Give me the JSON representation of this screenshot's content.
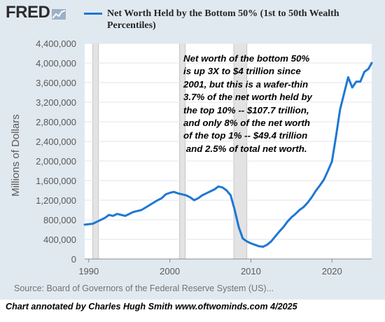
{
  "header": {
    "logo_text": "FRED",
    "legend_label": "Net Worth Held by the Bottom 50% (1st to 50th Wealth Percentiles)"
  },
  "annotation": {
    "lines": [
      "Net worth of the bottom 50%",
      "is up 3X to $4 trillion since",
      "2001, but this is a wafer-thin",
      "3.7% of the net worth held by",
      "the top 10% -- $107.7 trillion,",
      "and only 8% of the net worth",
      "of the top 1% -- $49.4 trillion",
      " and 2.5% of total net worth."
    ]
  },
  "source_text": "Source: Board of Governors of the Federal Reserve System (US)...",
  "footer_text": "Chart annotated by Charles Hugh Smith  www.oftwominds.com  4/2025",
  "colors": {
    "line": "#1f77d4",
    "panel_background": "#e1e9f0",
    "plot_background": "#ffffff",
    "recession_shading": "#e3e3e3",
    "gridline": "#dfe5ec"
  },
  "icons": {
    "logo_mark": "line-graph-icon"
  },
  "chart_data": {
    "type": "line",
    "title": "Net Worth Held by the Bottom 50% (1st to 50th Wealth Percentiles)",
    "xlabel": "",
    "ylabel": "Millions of Dollars",
    "xlim": [
      1989.5,
      2024.9
    ],
    "ylim": [
      0,
      4400000
    ],
    "x_ticks": [
      1990,
      2000,
      2010,
      2020
    ],
    "x_tick_labels": [
      "1990",
      "2000",
      "2010",
      "2020"
    ],
    "y_ticks": [
      0,
      400000,
      800000,
      1200000,
      1600000,
      2000000,
      2400000,
      2800000,
      3200000,
      3600000,
      4000000,
      4400000
    ],
    "y_tick_labels": [
      "0",
      "400,000",
      "800,000",
      "1,200,000",
      "1,600,000",
      "2,000,000",
      "2,400,000",
      "2,800,000",
      "3,200,000",
      "3,600,000",
      "4,000,000",
      "4,400,000"
    ],
    "grid": true,
    "legend_position": "top",
    "recessions": [
      [
        1990.5,
        1991.2
      ],
      [
        2001.2,
        2001.9
      ],
      [
        2007.9,
        2009.5
      ]
    ],
    "series": [
      {
        "name": "Net Worth Held by the Bottom 50% (1st to 50th Wealth Percentiles)",
        "x": [
          1989.5,
          1990.0,
          1990.5,
          1991.0,
          1991.5,
          1992.0,
          1992.5,
          1993.0,
          1993.5,
          1994.0,
          1994.5,
          1995.0,
          1995.5,
          1996.0,
          1996.5,
          1997.0,
          1997.5,
          1998.0,
          1998.5,
          1999.0,
          1999.5,
          2000.0,
          2000.5,
          2001.0,
          2001.5,
          2002.0,
          2002.5,
          2003.0,
          2003.5,
          2004.0,
          2004.5,
          2005.0,
          2005.5,
          2006.0,
          2006.5,
          2007.0,
          2007.5,
          2008.0,
          2008.5,
          2009.0,
          2009.5,
          2010.0,
          2010.5,
          2011.0,
          2011.5,
          2012.0,
          2012.5,
          2013.0,
          2013.5,
          2014.0,
          2014.5,
          2015.0,
          2015.5,
          2016.0,
          2016.5,
          2017.0,
          2017.5,
          2018.0,
          2018.5,
          2019.0,
          2019.5,
          2020.0,
          2020.5,
          2021.0,
          2021.5,
          2022.0,
          2022.5,
          2023.0,
          2023.5,
          2024.0,
          2024.5,
          2024.9
        ],
        "values": [
          700000,
          710000,
          720000,
          760000,
          800000,
          840000,
          900000,
          880000,
          920000,
          900000,
          880000,
          920000,
          960000,
          980000,
          1000000,
          1050000,
          1100000,
          1150000,
          1200000,
          1240000,
          1320000,
          1350000,
          1370000,
          1340000,
          1320000,
          1300000,
          1260000,
          1200000,
          1240000,
          1300000,
          1340000,
          1380000,
          1420000,
          1480000,
          1460000,
          1400000,
          1300000,
          1000000,
          650000,
          420000,
          360000,
          320000,
          290000,
          260000,
          250000,
          290000,
          360000,
          460000,
          560000,
          650000,
          760000,
          850000,
          920000,
          1000000,
          1060000,
          1150000,
          1260000,
          1390000,
          1500000,
          1620000,
          1800000,
          1990000,
          2500000,
          3050000,
          3380000,
          3710000,
          3500000,
          3620000,
          3620000,
          3820000,
          3880000,
          4000000
        ]
      }
    ]
  }
}
